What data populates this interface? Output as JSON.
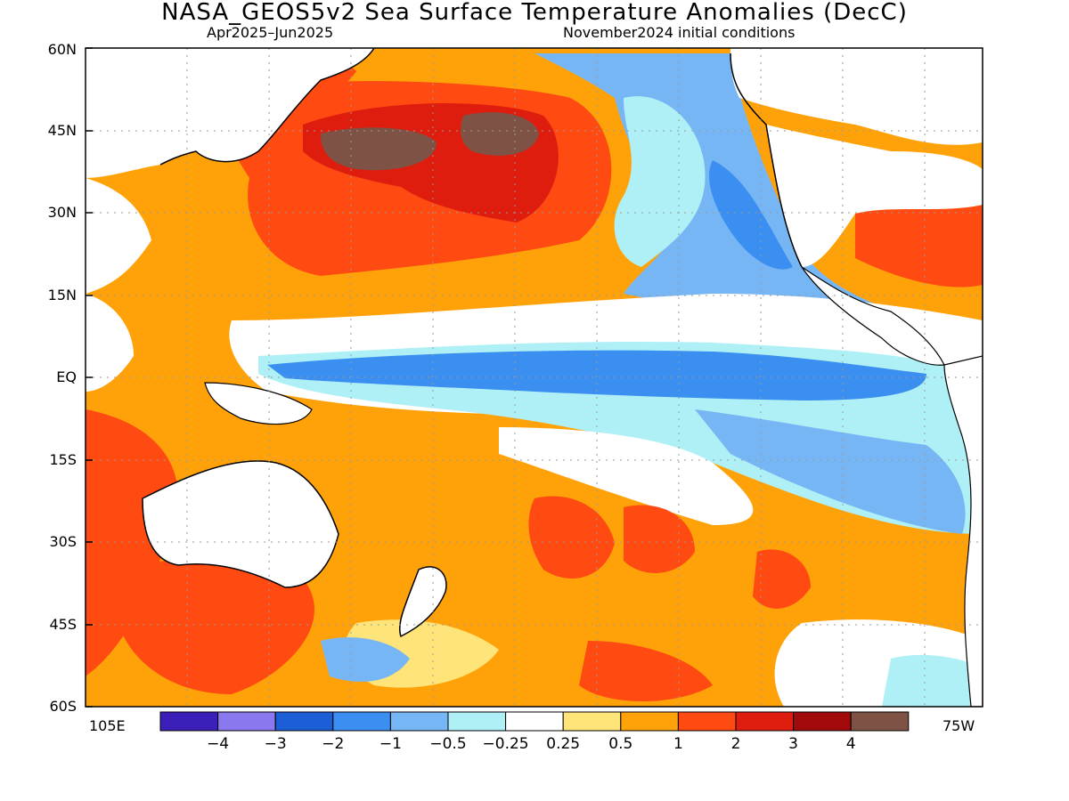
{
  "title": "NASA_GEOS5v2 Sea Surface Temperature Anomalies (DecC)",
  "subtitle_left": "Apr2025–Jun2025",
  "subtitle_right": "November2024 initial conditions",
  "lat_labels": [
    "60N",
    "45N",
    "30N",
    "15N",
    "EQ",
    "15S",
    "30S",
    "45S",
    "60S"
  ],
  "lon_left": "105E",
  "lon_right": "75W",
  "colorbar": {
    "colors": [
      "#3b1fb8",
      "#8a78ee",
      "#1b5ed6",
      "#3b8ff0",
      "#77b6f4",
      "#aef0f6",
      "#ffffff",
      "#ffe47a",
      "#ffa20a",
      "#ff4a12",
      "#df1d0f",
      "#a00a0a",
      "#7e5346"
    ],
    "labels": [
      "−4",
      "−3",
      "−2",
      "−1",
      "−0.5",
      "−0.25",
      "0.25",
      "0.5",
      "1",
      "2",
      "3",
      "4"
    ]
  }
}
